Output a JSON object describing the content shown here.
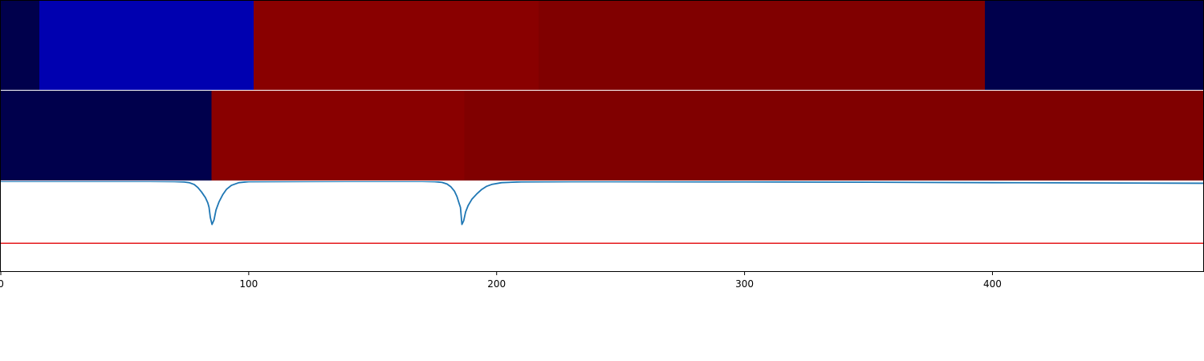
{
  "colors": {
    "background": "#ffffff",
    "axis": "#000000",
    "separator": "#ffffff",
    "signal_line": "#1f77b4",
    "threshold_line": "#e41a1c"
  },
  "chart_data": [
    {
      "type": "heatmap",
      "panel": "top-band",
      "xlim": [
        0,
        485
      ],
      "segments": [
        {
          "x0": 0,
          "x1": 15.5,
          "color": "#00004c"
        },
        {
          "x0": 15.5,
          "x1": 102,
          "color": "#0000b0"
        },
        {
          "x0": 102,
          "x1": 217,
          "color": "#890000"
        },
        {
          "x0": 217,
          "x1": 397,
          "color": "#800000"
        },
        {
          "x0": 397,
          "x1": 485,
          "color": "#00004c"
        }
      ]
    },
    {
      "type": "heatmap",
      "panel": "middle-band",
      "xlim": [
        0,
        485
      ],
      "segments": [
        {
          "x0": 0,
          "x1": 85,
          "color": "#00004c"
        },
        {
          "x0": 85,
          "x1": 187,
          "color": "#890000"
        },
        {
          "x0": 187,
          "x1": 485,
          "color": "#800000"
        }
      ]
    },
    {
      "type": "line",
      "panel": "bottom-line",
      "xlim": [
        0,
        485
      ],
      "ylim": [
        0,
        1
      ],
      "x_ticks": [
        0,
        100,
        200,
        300,
        400
      ],
      "x_tick_labels": [
        "0",
        "100",
        "200",
        "300",
        "400"
      ],
      "threshold": 0.31,
      "series": [
        {
          "x": [
            0,
            60,
            70,
            74,
            76,
            78,
            79.5,
            81,
            82.5,
            83.5,
            84,
            84.5,
            85.2,
            86,
            86.8,
            88,
            89.5,
            91,
            93,
            96,
            100,
            140,
            170,
            175,
            178,
            180,
            181.5,
            183,
            184,
            184.8,
            185.4,
            186,
            186.7,
            187.5,
            188.5,
            190,
            192,
            194,
            196,
            198,
            202,
            210,
            230,
            300,
            350,
            400,
            440,
            485
          ],
          "y": [
            0.999,
            0.999,
            0.997,
            0.992,
            0.985,
            0.965,
            0.93,
            0.88,
            0.82,
            0.76,
            0.71,
            0.6,
            0.52,
            0.57,
            0.68,
            0.77,
            0.85,
            0.91,
            0.955,
            0.985,
            0.996,
            0.999,
            0.999,
            0.996,
            0.988,
            0.97,
            0.94,
            0.89,
            0.83,
            0.76,
            0.71,
            0.52,
            0.56,
            0.66,
            0.73,
            0.8,
            0.86,
            0.91,
            0.945,
            0.965,
            0.985,
            0.994,
            0.996,
            0.993,
            0.99,
            0.985,
            0.982,
            0.978
          ]
        }
      ]
    }
  ]
}
